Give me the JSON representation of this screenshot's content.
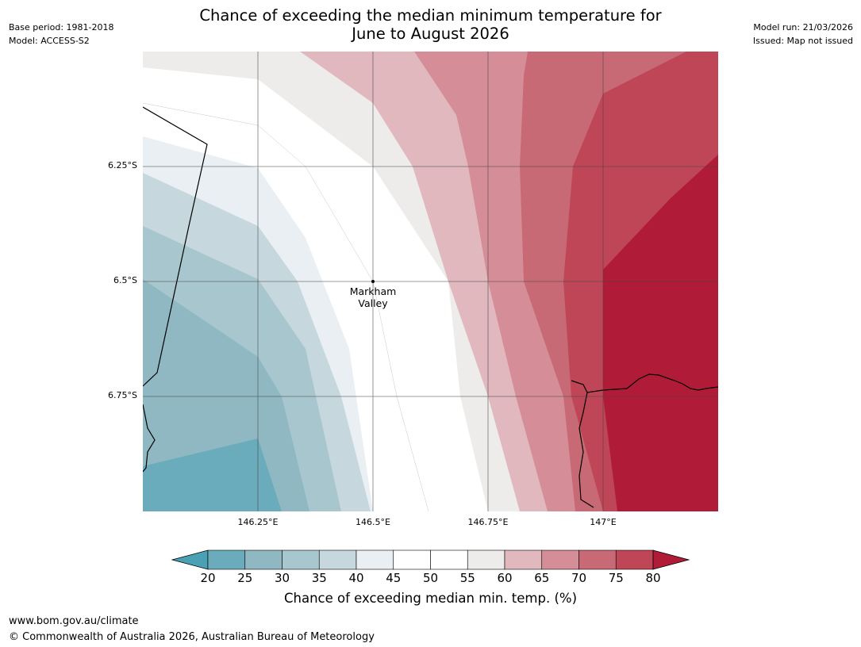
{
  "title_line1": "Chance of exceeding the median minimum temperature for",
  "title_line2": "June to August 2026",
  "meta_left": [
    "Base period: 1981-2018",
    "Model: ACCESS-S2"
  ],
  "meta_right": [
    "Model run: 21/03/2026",
    "Issued: Map not issued"
  ],
  "map": {
    "lat_labels": [
      "6.25°S",
      "6.5°S",
      "6.75°S"
    ],
    "lon_labels": [
      "146.25°E",
      "146.5°E",
      "146.75°E",
      "147°E"
    ],
    "place_name_line1": "Markham",
    "place_name_line2": "Valley",
    "place_coords": {
      "lon": 146.5,
      "lat": -6.5
    }
  },
  "colorbar": {
    "ticks": [
      "20",
      "25",
      "30",
      "35",
      "40",
      "45",
      "50",
      "55",
      "60",
      "65",
      "70",
      "75",
      "80"
    ],
    "colors": [
      "#4aa1b3",
      "#6aacbb",
      "#8fb8c3",
      "#a8c6cd",
      "#c6d8dd",
      "#e9eff2",
      "#ffffff",
      "#ffffff",
      "#eeecea",
      "#e0b8be",
      "#d58e98",
      "#c86a76",
      "#be4656",
      "#b01c38"
    ],
    "title": "Chance of exceeding median min. temp. (%)"
  },
  "footer": {
    "url": "www.bom.gov.au/climate",
    "copyright": "© Commonwealth of Australia 2026, Australian Bureau of Meteorology"
  }
}
